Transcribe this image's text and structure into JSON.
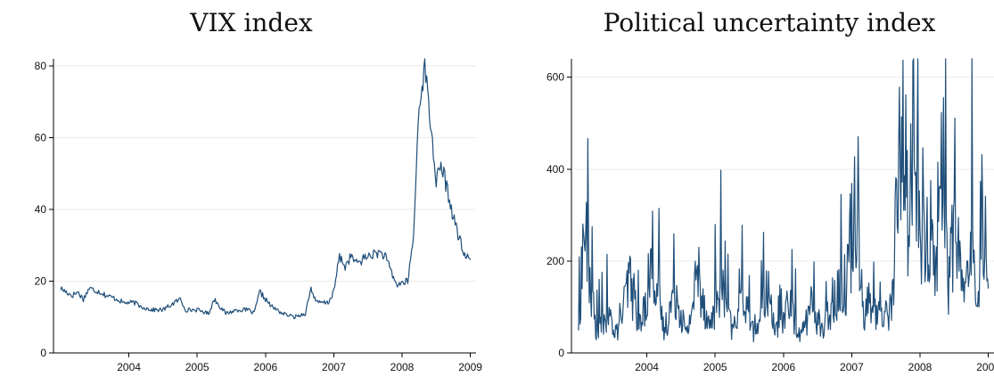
{
  "chart_data": [
    {
      "type": "line",
      "title": "VIX index",
      "xlabel": "",
      "ylabel": "",
      "xlim": [
        "2003-07",
        "2009-08"
      ],
      "ylim": [
        0,
        82
      ],
      "x_ticks": [
        "2004",
        "2005",
        "2006",
        "2007",
        "2008",
        "2009"
      ],
      "y_ticks": [
        0,
        20,
        40,
        60,
        80
      ],
      "grid": true,
      "line_color": "#1f4e79",
      "series": [
        {
          "x": [
            "2003-07",
            "2003-09",
            "2003-10",
            "2003-11",
            "2003-12",
            "2004-02",
            "2004-03",
            "2004-05",
            "2004-06",
            "2004-08",
            "2004-09",
            "2004-11",
            "2005-01",
            "2005-02",
            "2005-04",
            "2005-05",
            "2005-07",
            "2005-09",
            "2005-10",
            "2005-12",
            "2006-02",
            "2006-04",
            "2006-05",
            "2006-06",
            "2006-08",
            "2006-10",
            "2006-12",
            "2007-02",
            "2007-03",
            "2007-04",
            "2007-06",
            "2007-07",
            "2007-08",
            "2007-09",
            "2007-10",
            "2007-11",
            "2008-01",
            "2008-03",
            "2008-04",
            "2008-06",
            "2008-08",
            "2008-09",
            "2008-10",
            "2008-11",
            "2008-12",
            "2009-01",
            "2009-02",
            "2009-03",
            "2009-04",
            "2009-05",
            "2009-06",
            "2009-07"
          ],
          "values": [
            18,
            16,
            17,
            15,
            18,
            17,
            16,
            15,
            14,
            14,
            13,
            12,
            12,
            13,
            15,
            12,
            12,
            11,
            15,
            11,
            12,
            12,
            11,
            17,
            13,
            11,
            10,
            11,
            18,
            14,
            14,
            17,
            27,
            24,
            27,
            25,
            27,
            28,
            27,
            19,
            20,
            32,
            70,
            80,
            64,
            48,
            52,
            45,
            38,
            32,
            27,
            26
          ]
        }
      ]
    },
    {
      "type": "line",
      "title": "Political uncertainty index",
      "xlabel": "",
      "ylabel": "",
      "xlim": [
        "2003-07",
        "2009-08"
      ],
      "ylim": [
        0,
        640
      ],
      "x_ticks": [
        "2004",
        "2005",
        "2006",
        "2007",
        "2008",
        "2009"
      ],
      "y_ticks": [
        0,
        200,
        400,
        600
      ],
      "grid": true,
      "line_color": "#1f4e79",
      "series": [
        {
          "x": [
            "2003-07",
            "2003-08",
            "2003-10",
            "2003-12",
            "2004-02",
            "2004-04",
            "2004-06",
            "2004-08",
            "2004-10",
            "2004-12",
            "2005-02",
            "2005-04",
            "2005-06",
            "2005-08",
            "2005-10",
            "2005-12",
            "2006-02",
            "2006-04",
            "2006-06",
            "2006-08",
            "2006-10",
            "2006-12",
            "2007-02",
            "2007-04",
            "2007-06",
            "2007-08",
            "2007-09",
            "2007-10",
            "2007-12",
            "2008-02",
            "2008-04",
            "2008-05",
            "2008-06",
            "2008-07",
            "2008-09",
            "2008-10",
            "2008-11",
            "2008-12",
            "2009-01",
            "2009-03",
            "2009-04",
            "2009-05",
            "2009-06",
            "2009-07"
          ],
          "values": [
            70,
            310,
            60,
            90,
            50,
            180,
            60,
            240,
            50,
            160,
            40,
            200,
            60,
            180,
            50,
            150,
            40,
            160,
            50,
            130,
            40,
            120,
            50,
            150,
            180,
            420,
            100,
            120,
            90,
            110,
            620,
            280,
            620,
            250,
            300,
            200,
            550,
            180,
            300,
            120,
            360,
            100,
            410,
            140
          ]
        }
      ]
    }
  ]
}
